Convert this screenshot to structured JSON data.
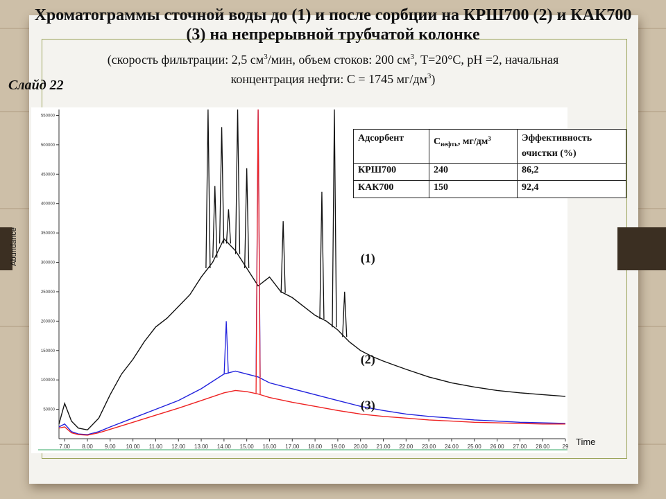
{
  "header": {
    "title": "Хроматограммы сточной воды до (1) и после сорбции на КРШ700 (2) и КАК700 (3) на непрерывной трубчатой колонке",
    "subtitle_part1": "(скорость фильтрации:  2,5 см",
    "subtitle_part2": "/мин,  объем стоков: 200 см",
    "subtitle_part3": ", T=20°C, pH =2, начальная",
    "subtitle_part4": "концентрация  нефти: C = 1745 мг/дм",
    "subtitle_part5": ")",
    "superscript": "3"
  },
  "slide_label": "Слайд 22",
  "table": {
    "col1": "Адсорбент",
    "col2_main": "C",
    "col2_sub": "нефть",
    "col2_rest": ", мг/дм",
    "col2_sup": "3",
    "col3": "Эффективность очистки (%)",
    "rows": [
      {
        "adsorbent": "КРШ700",
        "conc": "240",
        "eff": "86,2"
      },
      {
        "adsorbent": "КАК700",
        "conc": "150",
        "eff": "92,4"
      }
    ]
  },
  "chart_data": {
    "type": "line",
    "xlabel": "Time",
    "ylabel": "Abundance",
    "xlim": [
      6.75,
      29.0
    ],
    "ylim": [
      0,
      560000
    ],
    "x_ticks": [
      "7.00",
      "8.00",
      "9.00",
      "10.00",
      "11.00",
      "12.00",
      "13.00",
      "14.00",
      "15.00",
      "16.00",
      "17.00",
      "18.00",
      "19.00",
      "20.00",
      "21.00",
      "22.00",
      "23.00",
      "24.00",
      "25.00",
      "26.00",
      "27.00",
      "28.00",
      "29"
    ],
    "y_ticks": [
      "50000",
      "100000",
      "150000",
      "200000",
      "250000",
      "300000",
      "350000",
      "400000",
      "450000",
      "500000",
      "550000"
    ],
    "series": [
      {
        "name": "(1)",
        "color": "#111111",
        "x": [
          6.75,
          7.0,
          7.3,
          7.6,
          8.0,
          8.5,
          9.0,
          9.5,
          10.0,
          10.5,
          11.0,
          11.5,
          12.0,
          12.5,
          13.0,
          13.5,
          14.0,
          14.5,
          15.0,
          15.5,
          16.0,
          16.5,
          17.0,
          17.5,
          18.0,
          18.5,
          19.0,
          19.5,
          20.0,
          20.5,
          21.0,
          21.5,
          22.0,
          23.0,
          24.0,
          25.0,
          26.0,
          27.0,
          28.0,
          29.0
        ],
        "y": [
          25000,
          60000,
          30000,
          18000,
          15000,
          35000,
          75000,
          110000,
          135000,
          165000,
          190000,
          205000,
          225000,
          245000,
          275000,
          300000,
          340000,
          320000,
          290000,
          260000,
          275000,
          250000,
          240000,
          225000,
          210000,
          200000,
          185000,
          165000,
          150000,
          140000,
          132000,
          125000,
          118000,
          105000,
          95000,
          88000,
          82000,
          78000,
          75000,
          72000
        ]
      },
      {
        "name": "(2)",
        "color": "#2222dd",
        "x": [
          6.75,
          7.0,
          7.3,
          7.6,
          8.0,
          8.5,
          9.0,
          10.0,
          11.0,
          12.0,
          13.0,
          14.0,
          14.5,
          15.0,
          15.5,
          16.0,
          17.0,
          18.0,
          19.0,
          20.0,
          21.0,
          22.0,
          23.0,
          24.0,
          25.0,
          26.0,
          27.0,
          28.0,
          29.0
        ],
        "y": [
          20000,
          25000,
          12000,
          8000,
          7000,
          12000,
          20000,
          35000,
          50000,
          65000,
          85000,
          110000,
          115000,
          110000,
          105000,
          95000,
          85000,
          75000,
          65000,
          55000,
          48000,
          42000,
          38000,
          35000,
          32000,
          30000,
          28000,
          27000,
          26000
        ]
      },
      {
        "name": "(3)",
        "color": "#ee2222",
        "x": [
          6.75,
          7.0,
          7.3,
          7.6,
          8.0,
          8.5,
          9.0,
          10.0,
          11.0,
          12.0,
          13.0,
          14.0,
          14.5,
          15.0,
          15.5,
          16.0,
          17.0,
          18.0,
          19.0,
          20.0,
          21.0,
          22.0,
          23.0,
          24.0,
          25.0,
          26.0,
          27.0,
          28.0,
          29.0
        ],
        "y": [
          18000,
          20000,
          10000,
          7000,
          6000,
          10000,
          16000,
          28000,
          40000,
          52000,
          65000,
          78000,
          82000,
          80000,
          76000,
          70000,
          62000,
          55000,
          48000,
          42000,
          38000,
          35000,
          32000,
          30000,
          28000,
          27000,
          26000,
          25000,
          25000
        ]
      }
    ],
    "peaks": [
      {
        "series": "(1)",
        "x": 13.3,
        "y": 560000
      },
      {
        "series": "(1)",
        "x": 13.6,
        "y": 430000
      },
      {
        "series": "(1)",
        "x": 13.9,
        "y": 530000
      },
      {
        "series": "(1)",
        "x": 14.2,
        "y": 390000
      },
      {
        "series": "(1)",
        "x": 14.6,
        "y": 560000
      },
      {
        "series": "(1)",
        "x": 15.0,
        "y": 460000
      },
      {
        "series": "(1)",
        "x": 16.6,
        "y": 370000
      },
      {
        "series": "(1)",
        "x": 18.3,
        "y": 420000
      },
      {
        "series": "(1)",
        "x": 18.85,
        "y": 560000
      },
      {
        "series": "(1)",
        "x": 19.3,
        "y": 250000
      },
      {
        "series": "(2)",
        "x": 14.1,
        "y": 200000
      },
      {
        "series": "(2)",
        "x": 15.5,
        "y": 560000
      },
      {
        "series": "(3)",
        "x": 15.5,
        "y": 560000
      }
    ],
    "series_labels": [
      {
        "text": "(1)",
        "x": 20.0,
        "y": 300000
      },
      {
        "text": "(2)",
        "x": 20.0,
        "y": 128000
      },
      {
        "text": "(3)",
        "x": 20.0,
        "y": 50000
      }
    ]
  }
}
